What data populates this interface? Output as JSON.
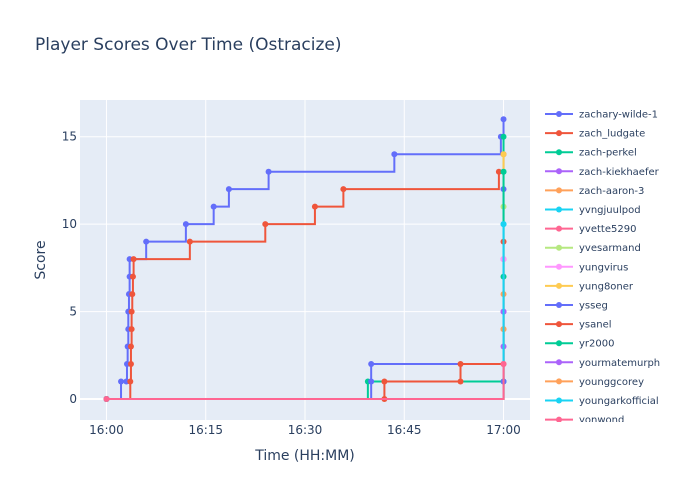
{
  "chart_data": {
    "type": "line",
    "line_shape": "step",
    "title": "Player Scores Over Time (Ostracize)",
    "xlabel": "Time (HH:MM)",
    "ylabel": "Score",
    "x_tick_labels": [
      "16:00",
      "16:15",
      "16:30",
      "16:45",
      "17:00"
    ],
    "x_ticks_minutes": [
      0,
      15,
      30,
      45,
      60
    ],
    "y_ticks": [
      0,
      5,
      10,
      15
    ],
    "xlim_minutes": [
      -4,
      64
    ],
    "ylim": [
      -1.2,
      17.1
    ],
    "grid": true,
    "legend_position": "right",
    "series": [
      {
        "name": "zachary-wilde-1",
        "color": "#636efa",
        "points": [
          [
            0,
            0
          ],
          [
            2.2,
            1
          ],
          [
            3,
            1
          ],
          [
            3.1,
            2
          ],
          [
            3.2,
            3
          ],
          [
            3.3,
            4
          ],
          [
            3.3,
            5
          ],
          [
            3.4,
            6
          ],
          [
            3.5,
            7
          ],
          [
            3.5,
            8
          ],
          [
            6,
            9
          ],
          [
            12,
            10
          ],
          [
            16.2,
            11
          ],
          [
            18.5,
            12
          ],
          [
            24.5,
            13
          ],
          [
            43.5,
            14
          ],
          [
            59.6,
            15
          ],
          [
            60,
            16
          ]
        ]
      },
      {
        "name": "zach_ludgate",
        "color": "#ef553b",
        "points": [
          [
            0,
            0
          ],
          [
            3.6,
            1
          ],
          [
            3.7,
            2
          ],
          [
            3.7,
            3
          ],
          [
            3.8,
            4
          ],
          [
            3.8,
            5
          ],
          [
            3.9,
            6
          ],
          [
            4,
            7
          ],
          [
            4.1,
            8
          ],
          [
            12.6,
            9
          ],
          [
            24,
            10
          ],
          [
            31.5,
            11
          ],
          [
            35.8,
            12
          ],
          [
            59.3,
            13
          ],
          [
            60,
            14
          ]
        ]
      },
      {
        "name": "zach-perkel",
        "color": "#00cc96",
        "points": [
          [
            0,
            0
          ],
          [
            39.5,
            1
          ],
          [
            60,
            1
          ],
          [
            60,
            7
          ],
          [
            60,
            13
          ],
          [
            60,
            15
          ]
        ]
      },
      {
        "name": "zach-kiekhaefer",
        "color": "#ab63fa",
        "points": [
          [
            0,
            0
          ],
          [
            60,
            3
          ],
          [
            60,
            5
          ]
        ]
      },
      {
        "name": "zach-aaron-3",
        "color": "#ffa15a",
        "points": [
          [
            0,
            0
          ],
          [
            60,
            4
          ],
          [
            60,
            6
          ]
        ]
      },
      {
        "name": "yvngjuulpod",
        "color": "#19d3f3",
        "points": [
          [
            0,
            0
          ],
          [
            60,
            10
          ]
        ]
      },
      {
        "name": "yvette5290",
        "color": "#ff6692",
        "points": [
          [
            0,
            0
          ],
          [
            60,
            8
          ]
        ]
      },
      {
        "name": "yvesarmand",
        "color": "#b6e880",
        "points": [
          [
            0,
            0
          ],
          [
            60,
            11
          ]
        ]
      },
      {
        "name": "yungvirus",
        "color": "#ff97ff",
        "points": [
          [
            0,
            0
          ],
          [
            60,
            8
          ]
        ]
      },
      {
        "name": "yung8oner",
        "color": "#fecb52",
        "points": [
          [
            0,
            0
          ],
          [
            60,
            14
          ]
        ]
      },
      {
        "name": "ysseg",
        "color": "#636efa",
        "points": [
          [
            0,
            0
          ],
          [
            40,
            1
          ],
          [
            40,
            2
          ],
          [
            60,
            1
          ],
          [
            60,
            12
          ]
        ]
      },
      {
        "name": "ysanel",
        "color": "#ef553b",
        "points": [
          [
            0,
            0
          ],
          [
            42,
            0
          ],
          [
            42,
            1
          ],
          [
            53.5,
            1
          ],
          [
            53.5,
            2
          ],
          [
            60,
            2
          ],
          [
            60,
            9
          ]
        ]
      },
      {
        "name": "yr2000",
        "color": "#00cc96",
        "points": [
          [
            0,
            0
          ],
          [
            60,
            13
          ]
        ]
      },
      {
        "name": "yourmatemurph",
        "color": "#ab63fa",
        "points": [
          [
            0,
            0
          ],
          [
            60,
            5
          ]
        ]
      },
      {
        "name": "younggcorey",
        "color": "#ffa15a",
        "points": [
          [
            0,
            0
          ],
          [
            60,
            4
          ]
        ]
      },
      {
        "name": "youngarkofficial",
        "color": "#19d3f3",
        "points": [
          [
            0,
            0
          ],
          [
            60,
            10
          ]
        ]
      },
      {
        "name": "yonwond",
        "color": "#ff6692",
        "points": [
          [
            0,
            0
          ],
          [
            60,
            2
          ]
        ]
      }
    ]
  }
}
